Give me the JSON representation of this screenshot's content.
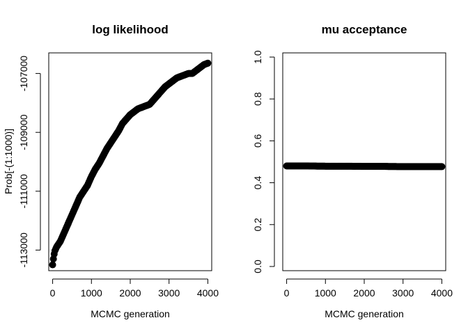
{
  "chart_data": [
    {
      "type": "scatter",
      "title": "log likelihood",
      "xlabel": "MCMC generation",
      "ylabel": "Prob[-(1:1000)]",
      "xlim": [
        -100,
        4100
      ],
      "ylim": [
        -113700,
        -106300
      ],
      "xticks": [
        0,
        1000,
        2000,
        3000,
        4000
      ],
      "yticks": [
        -113000,
        -111000,
        -109000,
        -107000
      ],
      "x_tick_labels": [
        "0",
        "1000",
        "2000",
        "3000",
        "4000"
      ],
      "y_tick_labels": [
        "-113000",
        "-111000",
        "-109000",
        "-107000"
      ],
      "point_color": "#000000",
      "trend": [
        [
          0,
          -113500
        ],
        [
          20,
          -113300
        ],
        [
          50,
          -113050
        ],
        [
          100,
          -112900
        ],
        [
          200,
          -112700
        ],
        [
          300,
          -112400
        ],
        [
          400,
          -112100
        ],
        [
          500,
          -111800
        ],
        [
          600,
          -111500
        ],
        [
          700,
          -111200
        ],
        [
          800,
          -111000
        ],
        [
          900,
          -110800
        ],
        [
          1000,
          -110500
        ],
        [
          1100,
          -110250
        ],
        [
          1200,
          -110050
        ],
        [
          1300,
          -109800
        ],
        [
          1400,
          -109550
        ],
        [
          1500,
          -109350
        ],
        [
          1600,
          -109150
        ],
        [
          1700,
          -108950
        ],
        [
          1800,
          -108700
        ],
        [
          1900,
          -108550
        ],
        [
          2000,
          -108400
        ],
        [
          2100,
          -108300
        ],
        [
          2200,
          -108200
        ],
        [
          2300,
          -108150
        ],
        [
          2400,
          -108100
        ],
        [
          2500,
          -108050
        ],
        [
          2600,
          -107900
        ],
        [
          2700,
          -107750
        ],
        [
          2800,
          -107600
        ],
        [
          2900,
          -107450
        ],
        [
          3000,
          -107350
        ],
        [
          3100,
          -107250
        ],
        [
          3200,
          -107150
        ],
        [
          3300,
          -107100
        ],
        [
          3400,
          -107050
        ],
        [
          3500,
          -107000
        ],
        [
          3600,
          -107000
        ],
        [
          3700,
          -106900
        ],
        [
          3800,
          -106800
        ],
        [
          3900,
          -106700
        ],
        [
          4000,
          -106650
        ]
      ]
    },
    {
      "type": "scatter",
      "title": "mu acceptance",
      "xlabel": "MCMC generation",
      "ylabel": "",
      "xlim": [
        -100,
        4100
      ],
      "ylim": [
        -0.02,
        1.02
      ],
      "xticks": [
        0,
        1000,
        2000,
        3000,
        4000
      ],
      "yticks": [
        0.0,
        0.2,
        0.4,
        0.6,
        0.8,
        1.0
      ],
      "x_tick_labels": [
        "0",
        "1000",
        "2000",
        "3000",
        "4000"
      ],
      "y_tick_labels": [
        "0.0",
        "0.2",
        "0.4",
        "0.6",
        "0.8",
        "1.0"
      ],
      "point_color": "#000000",
      "trend": [
        [
          0,
          0.48
        ],
        [
          500,
          0.48
        ],
        [
          1000,
          0.479
        ],
        [
          1500,
          0.479
        ],
        [
          2000,
          0.478
        ],
        [
          2500,
          0.478
        ],
        [
          3000,
          0.477
        ],
        [
          3500,
          0.477
        ],
        [
          4000,
          0.477
        ]
      ]
    }
  ]
}
